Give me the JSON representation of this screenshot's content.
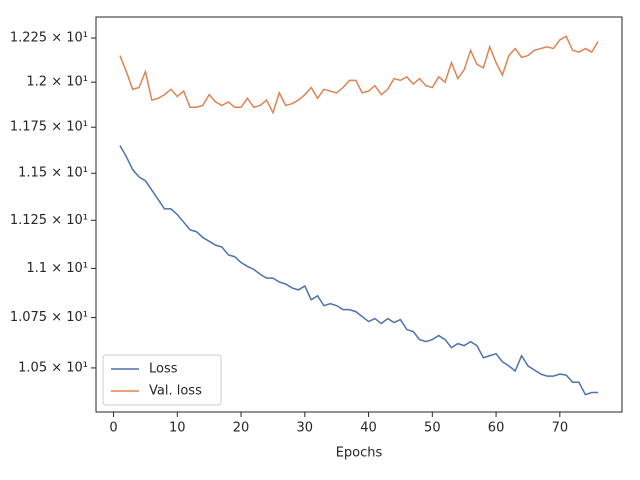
{
  "chart_data": {
    "type": "line",
    "x_label": "Epochs",
    "x": [
      1,
      2,
      3,
      4,
      5,
      6,
      7,
      8,
      9,
      10,
      11,
      12,
      13,
      14,
      15,
      16,
      17,
      18,
      19,
      20,
      21,
      22,
      23,
      24,
      25,
      26,
      27,
      28,
      29,
      30,
      31,
      32,
      33,
      34,
      35,
      36,
      37,
      38,
      39,
      40,
      41,
      42,
      43,
      44,
      45,
      46,
      47,
      48,
      49,
      50,
      51,
      52,
      53,
      54,
      55,
      56,
      57,
      58,
      59,
      60,
      61,
      62,
      63,
      64,
      65,
      66,
      67,
      68,
      69,
      70,
      71,
      72,
      73,
      74,
      75,
      76
    ],
    "series": [
      {
        "name": "Loss",
        "color": "#4c72b0",
        "values": [
          11.65,
          11.59,
          11.52,
          11.48,
          11.46,
          11.41,
          11.36,
          11.31,
          11.31,
          11.28,
          11.24,
          11.2,
          11.19,
          11.16,
          11.14,
          11.12,
          11.11,
          11.07,
          11.06,
          11.03,
          11.01,
          10.995,
          10.97,
          10.95,
          10.95,
          10.93,
          10.92,
          10.9,
          10.89,
          10.91,
          10.84,
          10.86,
          10.81,
          10.82,
          10.81,
          10.79,
          10.79,
          10.78,
          10.755,
          10.73,
          10.745,
          10.72,
          10.745,
          10.725,
          10.74,
          10.69,
          10.68,
          10.64,
          10.63,
          10.64,
          10.66,
          10.64,
          10.6,
          10.62,
          10.61,
          10.63,
          10.61,
          10.55,
          10.56,
          10.57,
          10.53,
          10.51,
          10.485,
          10.56,
          10.51,
          10.49,
          10.47,
          10.46,
          10.46,
          10.47,
          10.465,
          10.43,
          10.43,
          10.37,
          10.38,
          10.38
        ]
      },
      {
        "name": "Val. loss",
        "color": "#dd8452",
        "values": [
          12.15,
          12.06,
          11.96,
          11.97,
          12.06,
          11.9,
          11.91,
          11.93,
          11.96,
          11.92,
          11.95,
          11.86,
          11.86,
          11.87,
          11.93,
          11.89,
          11.87,
          11.89,
          11.86,
          11.86,
          11.91,
          11.86,
          11.87,
          11.9,
          11.83,
          11.94,
          11.87,
          11.88,
          11.9,
          11.93,
          11.97,
          11.91,
          11.96,
          11.95,
          11.94,
          11.97,
          12.01,
          12.01,
          11.94,
          11.95,
          11.98,
          11.93,
          11.96,
          12.02,
          12.01,
          12.03,
          11.99,
          12.02,
          11.98,
          11.97,
          12.03,
          12.0,
          12.11,
          12.02,
          12.07,
          12.18,
          12.1,
          12.08,
          12.2,
          12.11,
          12.04,
          12.15,
          12.19,
          12.14,
          12.15,
          12.18,
          12.19,
          12.2,
          12.19,
          12.24,
          12.26,
          12.18,
          12.17,
          12.19,
          12.17,
          12.23
        ]
      }
    ],
    "xlim": [
      -2.75,
      79.75
    ],
    "xticks": [
      0,
      10,
      20,
      30,
      40,
      50,
      60,
      70
    ],
    "ylim": [
      10.286,
      12.371
    ],
    "yscale": "log",
    "yticks": [
      {
        "value": 10.5,
        "label": "1.05 × 10¹"
      },
      {
        "value": 10.75,
        "label": "1.075 × 10¹"
      },
      {
        "value": 11.0,
        "label": "1.1 × 10¹"
      },
      {
        "value": 11.25,
        "label": "1.125 × 10¹"
      },
      {
        "value": 11.5,
        "label": "1.15 × 10¹"
      },
      {
        "value": 11.75,
        "label": "1.175 × 10¹"
      },
      {
        "value": 12.0,
        "label": "1.2 × 10¹"
      },
      {
        "value": 12.25,
        "label": "1.225 × 10¹"
      }
    ],
    "legend": "lower left"
  }
}
